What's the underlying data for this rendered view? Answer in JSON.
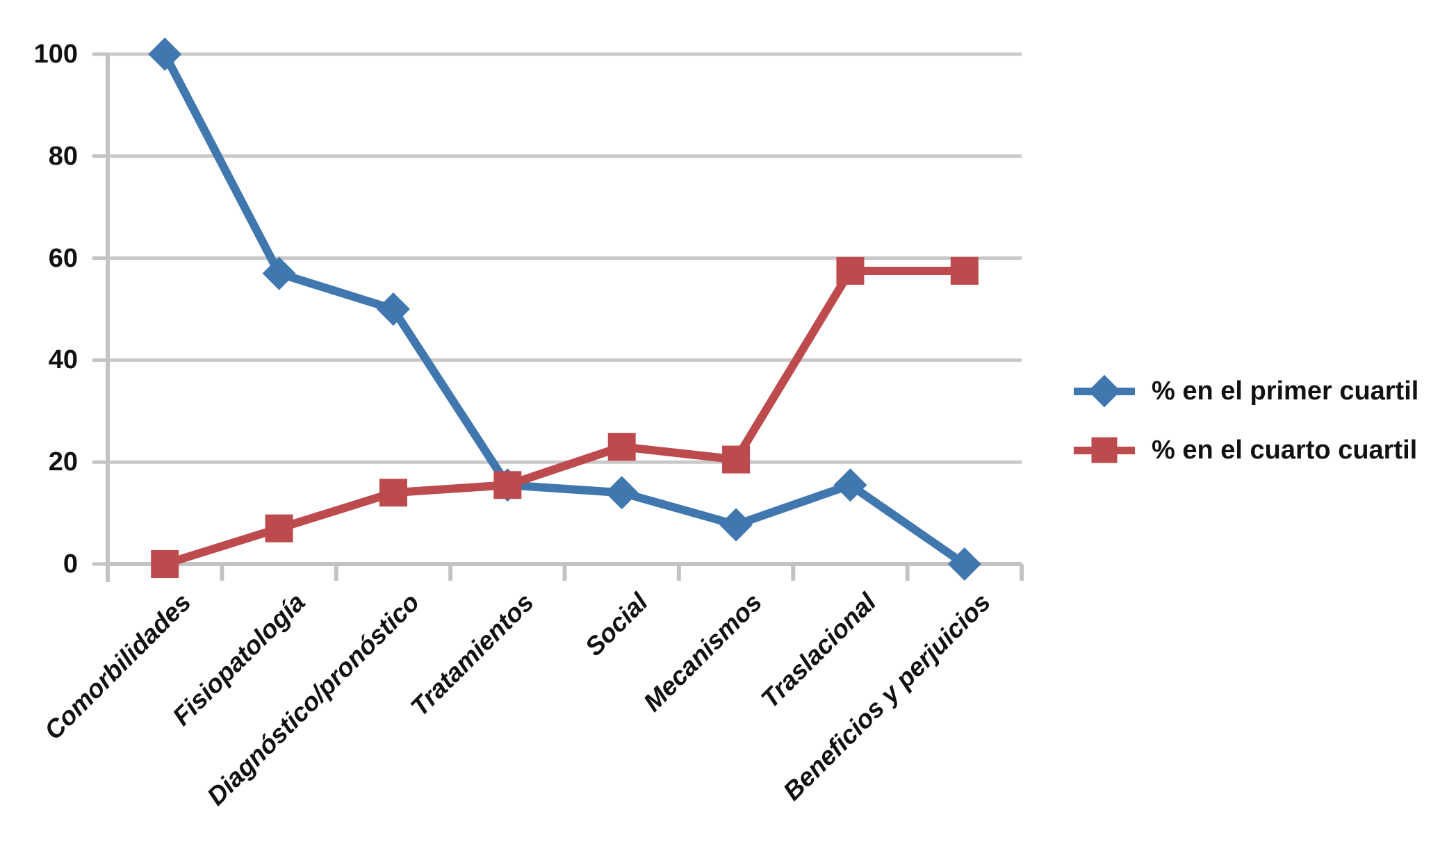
{
  "chart_data": {
    "type": "line",
    "title": "",
    "categories": [
      "Comorbilidades",
      "Fisiopatología",
      "Diagnóstico/pronóstico",
      "Tratamientos",
      "Social",
      "Mecanismos",
      "Traslacional",
      "Beneficios y perjuicios"
    ],
    "series": [
      {
        "name": "% en el primer cuartil",
        "marker": "diamond",
        "color": "#4077AF",
        "values": [
          100,
          57,
          50,
          15.5,
          14,
          7.7,
          15.5,
          0
        ]
      },
      {
        "name": "% en el cuarto cuartil",
        "marker": "square",
        "color": "#BD4A4C",
        "values": [
          0,
          7,
          14,
          15.5,
          23,
          20.5,
          57.5,
          57.5
        ]
      }
    ],
    "xlabel": "",
    "ylabel": "",
    "ylim": [
      0,
      100
    ],
    "yticks": [
      0,
      20,
      40,
      60,
      80,
      100
    ],
    "grid": "horizontal-only",
    "legend_position": "right",
    "colors": {
      "grid": "#C9C9C9",
      "axis": "#C3C3C3",
      "text": "#111111",
      "background": "#FFFFFF"
    }
  }
}
